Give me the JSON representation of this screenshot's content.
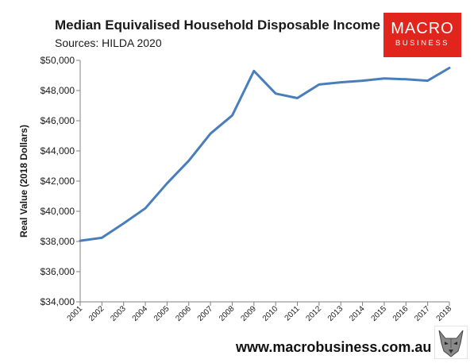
{
  "header": {
    "title": "Median Equivalised Household Disposable Income",
    "subtitle": "Sources: HILDA 2020"
  },
  "logo": {
    "line1": "MACRO",
    "line2": "BUSINESS",
    "color": "#e1241c"
  },
  "footer": {
    "url": "www.macrobusiness.com.au"
  },
  "chart_data": {
    "type": "line",
    "title": "Median Equivalised Household Disposable Income",
    "subtitle": "Sources: HILDA 2020",
    "xlabel": "",
    "ylabel": "Real Value (2018 Dollars)",
    "categories": [
      "2001",
      "2002",
      "2003",
      "2004",
      "2005",
      "2006",
      "2007",
      "2008",
      "2009",
      "2010",
      "2011",
      "2012",
      "2013",
      "2014",
      "2015",
      "2016",
      "2017",
      "2018"
    ],
    "ylim": [
      34000,
      50000
    ],
    "y_ticks": [
      34000,
      36000,
      38000,
      40000,
      42000,
      44000,
      46000,
      48000,
      50000
    ],
    "y_tick_labels": [
      "$34,000",
      "$36,000",
      "$38,000",
      "$40,000",
      "$42,000",
      "$44,000",
      "$46,000",
      "$48,000",
      "$50,000"
    ],
    "grid": false,
    "legend": "none",
    "series": [
      {
        "color": "#4a7ebb",
        "values": [
          38050,
          38250,
          39200,
          40200,
          41850,
          43350,
          45150,
          46350,
          49300,
          47800,
          47500,
          48400,
          48550,
          48650,
          48800,
          48750,
          48650,
          49500
        ]
      }
    ]
  }
}
